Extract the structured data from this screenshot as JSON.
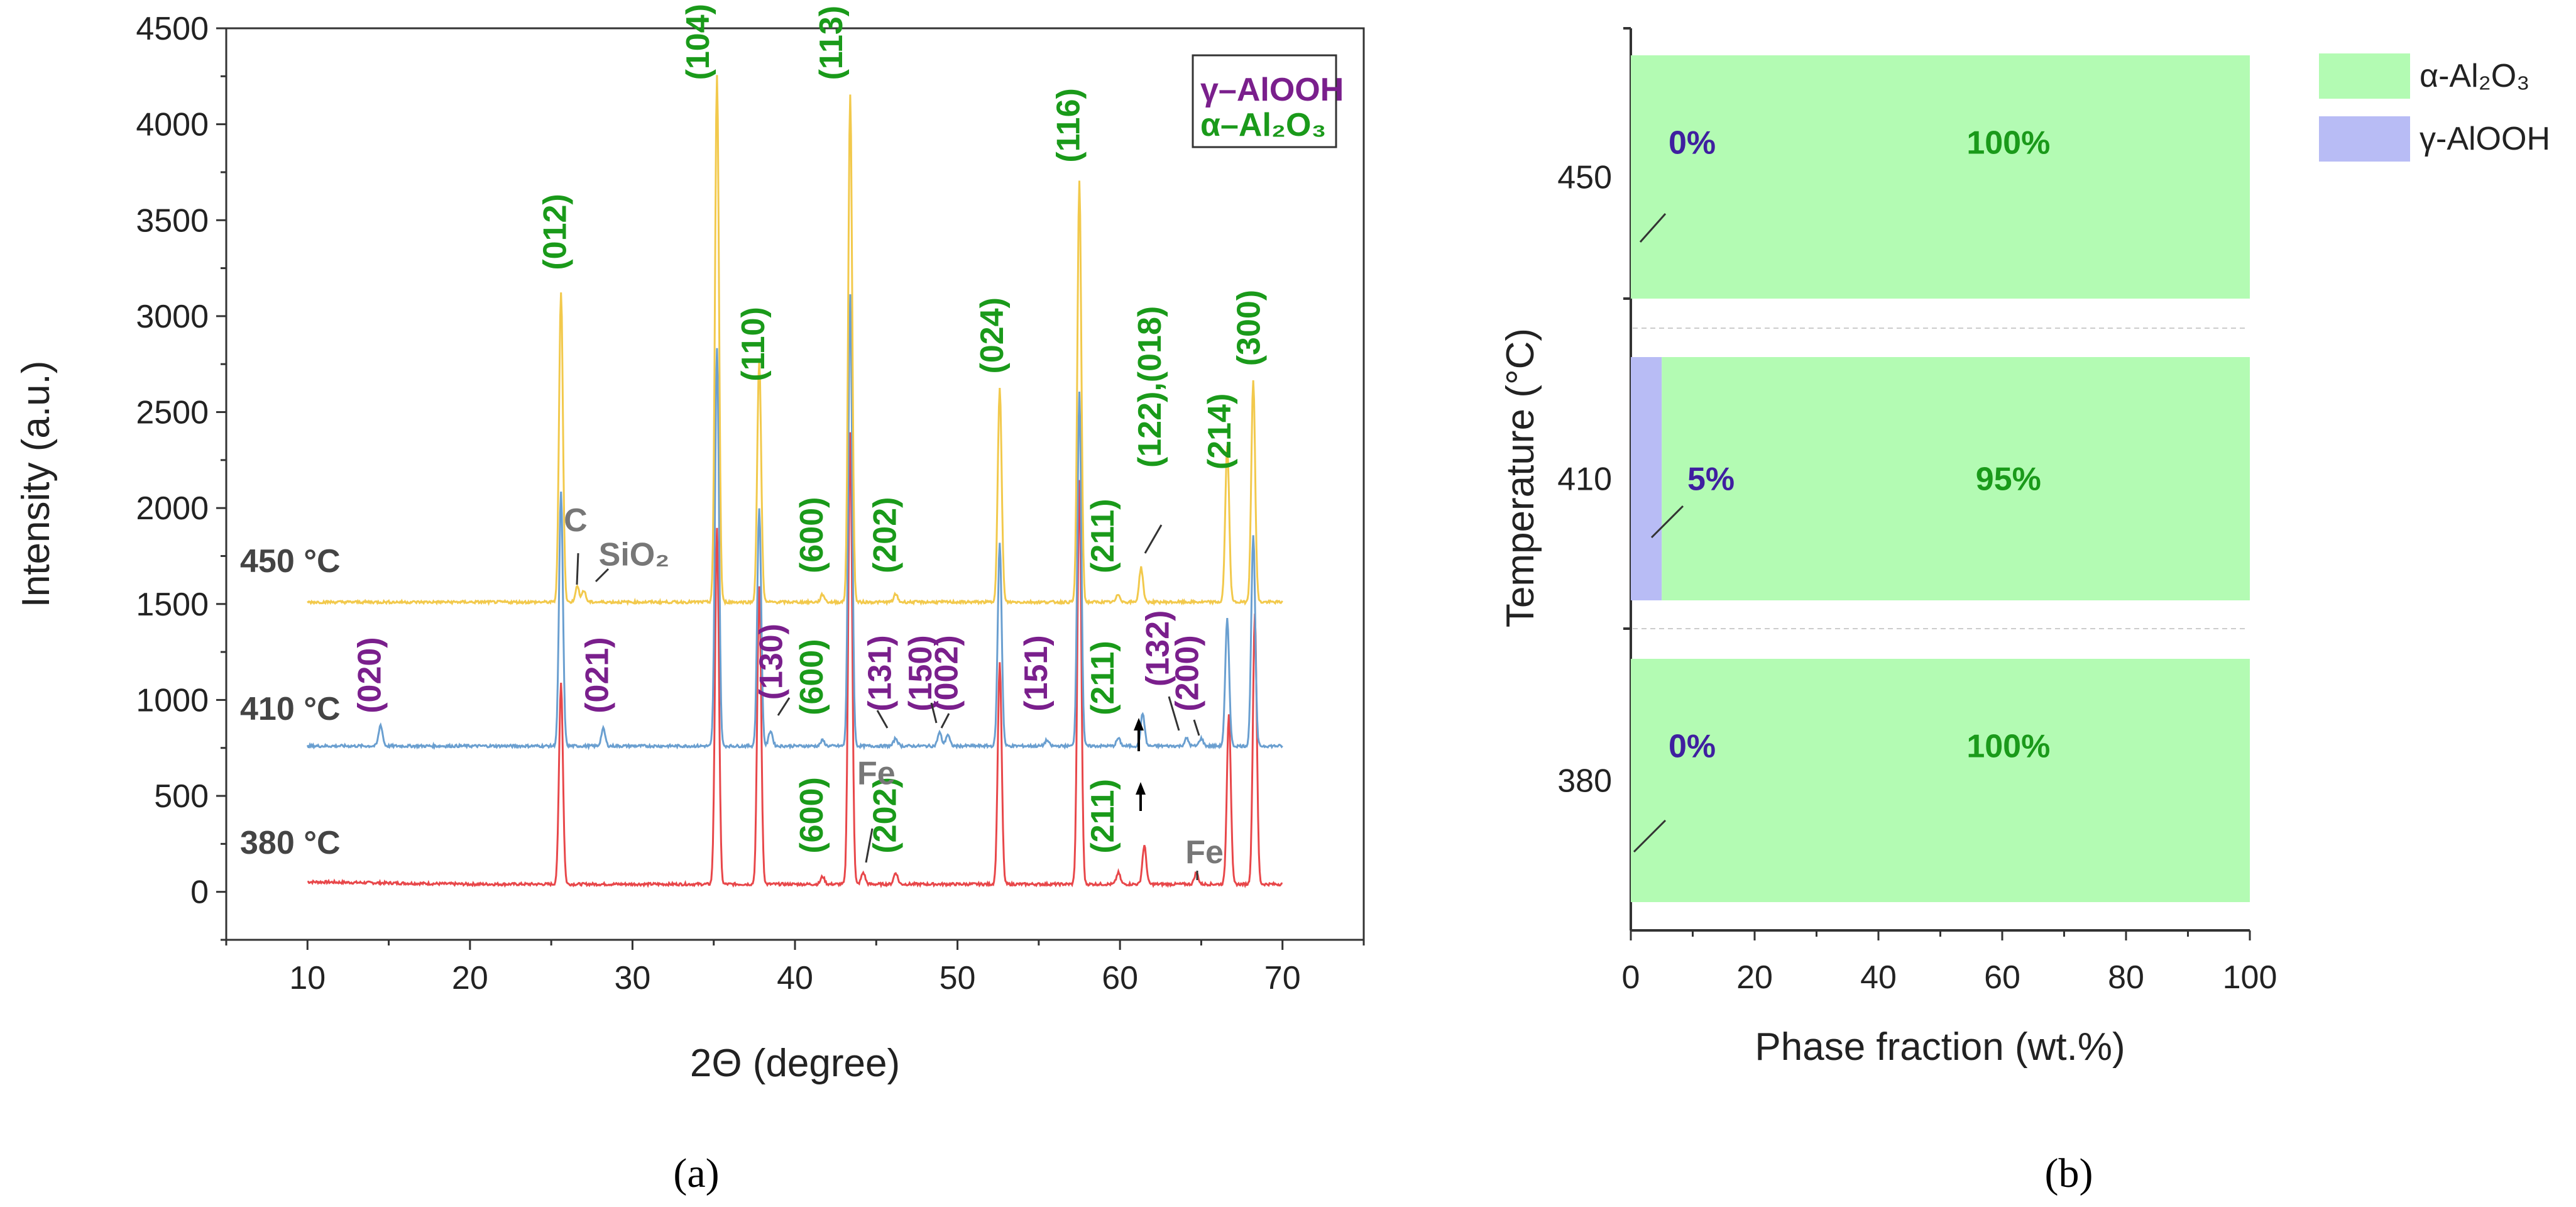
{
  "chart_data": [
    {
      "id": "a",
      "type": "line",
      "panel_label": "(a)",
      "xlabel": "2Θ (degree)",
      "ylabel": "Intensity (a.u.)",
      "xlim": [
        5,
        75
      ],
      "ylim": [
        -250,
        4500
      ],
      "xticks": [
        "10",
        "20",
        "30",
        "40",
        "50",
        "60",
        "70"
      ],
      "yticks": [
        "0",
        "500",
        "1000",
        "1500",
        "2000",
        "2500",
        "3000",
        "3500",
        "4000",
        "4500"
      ],
      "legend": {
        "position": "top-right",
        "entries": [
          "γ–AlOOH",
          "α–Al₂O₃"
        ]
      },
      "series": [
        {
          "name": "380 °C",
          "color": "#e8474a",
          "baseline": 40,
          "peaks": [
            [
              25.6,
              1050
            ],
            [
              35.2,
              1850
            ],
            [
              37.8,
              1550
            ],
            [
              41.7,
              40
            ],
            [
              43.4,
              2350
            ],
            [
              44.2,
              60
            ],
            [
              46.2,
              60
            ],
            [
              52.6,
              1150
            ],
            [
              57.5,
              2100
            ],
            [
              59.9,
              60
            ],
            [
              61.5,
              200
            ],
            [
              64.7,
              60
            ],
            [
              66.7,
              890
            ],
            [
              68.3,
              1410
            ]
          ]
        },
        {
          "name": "410 °C",
          "color": "#6a9fd0",
          "baseline": 760,
          "peaks": [
            [
              14.5,
              110
            ],
            [
              25.6,
              1320
            ],
            [
              28.2,
              90
            ],
            [
              35.2,
              2080
            ],
            [
              37.8,
              1240
            ],
            [
              38.5,
              80
            ],
            [
              41.7,
              30
            ],
            [
              43.4,
              2350
            ],
            [
              46.2,
              40
            ],
            [
              48.9,
              70
            ],
            [
              49.4,
              60
            ],
            [
              52.6,
              1060
            ],
            [
              55.5,
              30
            ],
            [
              57.5,
              1840
            ],
            [
              59.9,
              40
            ],
            [
              61.4,
              170
            ],
            [
              64.1,
              40
            ],
            [
              65.0,
              40
            ],
            [
              66.6,
              660
            ],
            [
              68.2,
              1100
            ]
          ]
        },
        {
          "name": "450 °C",
          "color": "#f2c94c",
          "baseline": 1510,
          "peaks": [
            [
              25.6,
              1620
            ],
            [
              26.6,
              80
            ],
            [
              27.0,
              60
            ],
            [
              35.2,
              2750
            ],
            [
              37.8,
              1260
            ],
            [
              41.7,
              40
            ],
            [
              43.4,
              2650
            ],
            [
              46.2,
              40
            ],
            [
              52.6,
              1110
            ],
            [
              57.5,
              2190
            ],
            [
              59.9,
              40
            ],
            [
              61.3,
              180
            ],
            [
              66.6,
              810
            ],
            [
              68.2,
              1150
            ]
          ]
        }
      ],
      "curve_labels": [
        {
          "text": "450 °C",
          "series": "450 °C"
        },
        {
          "text": "410 °C",
          "series": "410 °C"
        },
        {
          "text": "380 °C",
          "series": "380 °C"
        }
      ],
      "annotations": [
        {
          "text": "(104)",
          "x": 34.7,
          "y": 4230,
          "phase": "alpha",
          "rotate": true
        },
        {
          "text": "(113)",
          "x": 42.9,
          "y": 4230,
          "phase": "alpha",
          "rotate": true
        },
        {
          "text": "(116)",
          "x": 57.5,
          "y": 3800,
          "phase": "alpha",
          "rotate": true
        },
        {
          "text": "(012)",
          "x": 25.9,
          "y": 3240,
          "phase": "alpha",
          "rotate": true
        },
        {
          "text": "(110)",
          "x": 38.1,
          "y": 2660,
          "phase": "alpha",
          "rotate": true
        },
        {
          "text": "(024)",
          "x": 52.8,
          "y": 2700,
          "phase": "alpha",
          "rotate": true
        },
        {
          "text": "(122),(018)",
          "x": 62.5,
          "y": 2210,
          "phase": "alpha",
          "rotate": true
        },
        {
          "text": "(214)",
          "x": 66.8,
          "y": 2200,
          "phase": "alpha",
          "rotate": true
        },
        {
          "text": "(300)",
          "x": 68.6,
          "y": 2740,
          "phase": "alpha",
          "rotate": true
        },
        {
          "text": "(600)",
          "x": 41.7,
          "y": 1660,
          "phase": "alpha",
          "rotate": true
        },
        {
          "text": "(202)",
          "x": 46.2,
          "y": 1660,
          "phase": "alpha",
          "rotate": true
        },
        {
          "text": "(211)",
          "x": 59.6,
          "y": 1660,
          "phase": "alpha",
          "rotate": true
        },
        {
          "text": "(020)",
          "x": 14.5,
          "y": 930,
          "phase": "gamma",
          "rotate": true
        },
        {
          "text": "(021)",
          "x": 28.5,
          "y": 930,
          "phase": "gamma",
          "rotate": true
        },
        {
          "text": "(130)",
          "x": 39.2,
          "y": 1000,
          "phase": "gamma",
          "rotate": true
        },
        {
          "text": "(600)",
          "x": 41.7,
          "y": 920,
          "phase": "alpha",
          "rotate": true
        },
        {
          "text": "(131)",
          "x": 45.9,
          "y": 940,
          "phase": "gamma",
          "rotate": true
        },
        {
          "text": "(150)",
          "x": 48.4,
          "y": 940,
          "phase": "gamma",
          "rotate": true
        },
        {
          "text": "(002)",
          "x": 50.0,
          "y": 940,
          "phase": "gamma",
          "rotate": true
        },
        {
          "text": "(151)",
          "x": 55.5,
          "y": 940,
          "phase": "gamma",
          "rotate": true
        },
        {
          "text": "(211)",
          "x": 59.6,
          "y": 920,
          "phase": "alpha",
          "rotate": true
        },
        {
          "text": "(132)",
          "x": 63.0,
          "y": 1070,
          "phase": "gamma",
          "rotate": true
        },
        {
          "text": "(200)",
          "x": 64.8,
          "y": 940,
          "phase": "gamma",
          "rotate": true
        },
        {
          "text": "(600)",
          "x": 41.7,
          "y": 200,
          "phase": "alpha",
          "rotate": true
        },
        {
          "text": "(202)",
          "x": 46.2,
          "y": 200,
          "phase": "alpha",
          "rotate": true
        },
        {
          "text": "(211)",
          "x": 59.6,
          "y": 200,
          "phase": "alpha",
          "rotate": true
        },
        {
          "text": "C",
          "x": 26.5,
          "y": 1880,
          "phase": "impurity",
          "rotate": false
        },
        {
          "text": "SiO₂",
          "x": 30.1,
          "y": 1700,
          "phase": "impurity",
          "rotate": false
        },
        {
          "text": "Fe",
          "x": 45.0,
          "y": 560,
          "phase": "impurity",
          "rotate": false
        },
        {
          "text": "Fe",
          "x": 65.2,
          "y": 150,
          "phase": "impurity",
          "rotate": false
        }
      ]
    },
    {
      "id": "b",
      "type": "bar",
      "orientation": "horizontal",
      "stacked": true,
      "panel_label": "(b)",
      "xlabel": "Phase fraction (wt.%)",
      "ylabel": "Temperature (°C)",
      "xlim": [
        0,
        100
      ],
      "xticks": [
        "0",
        "20",
        "40",
        "60",
        "80",
        "100"
      ],
      "categories": [
        "450",
        "410",
        "380"
      ],
      "legend": {
        "position": "top-right",
        "entries": [
          "α-Al₂O₃",
          "γ-AlOOH"
        ]
      },
      "series": [
        {
          "name": "γ-AlOOH",
          "color": "#b8bcf5",
          "values": [
            0,
            5,
            0
          ],
          "labels": [
            "0%",
            "5%",
            "0%"
          ]
        },
        {
          "name": "α-Al₂O₃",
          "color": "#b3fbb3",
          "values": [
            100,
            95,
            100
          ],
          "labels": [
            "100%",
            "95%",
            "100%"
          ]
        }
      ]
    }
  ]
}
